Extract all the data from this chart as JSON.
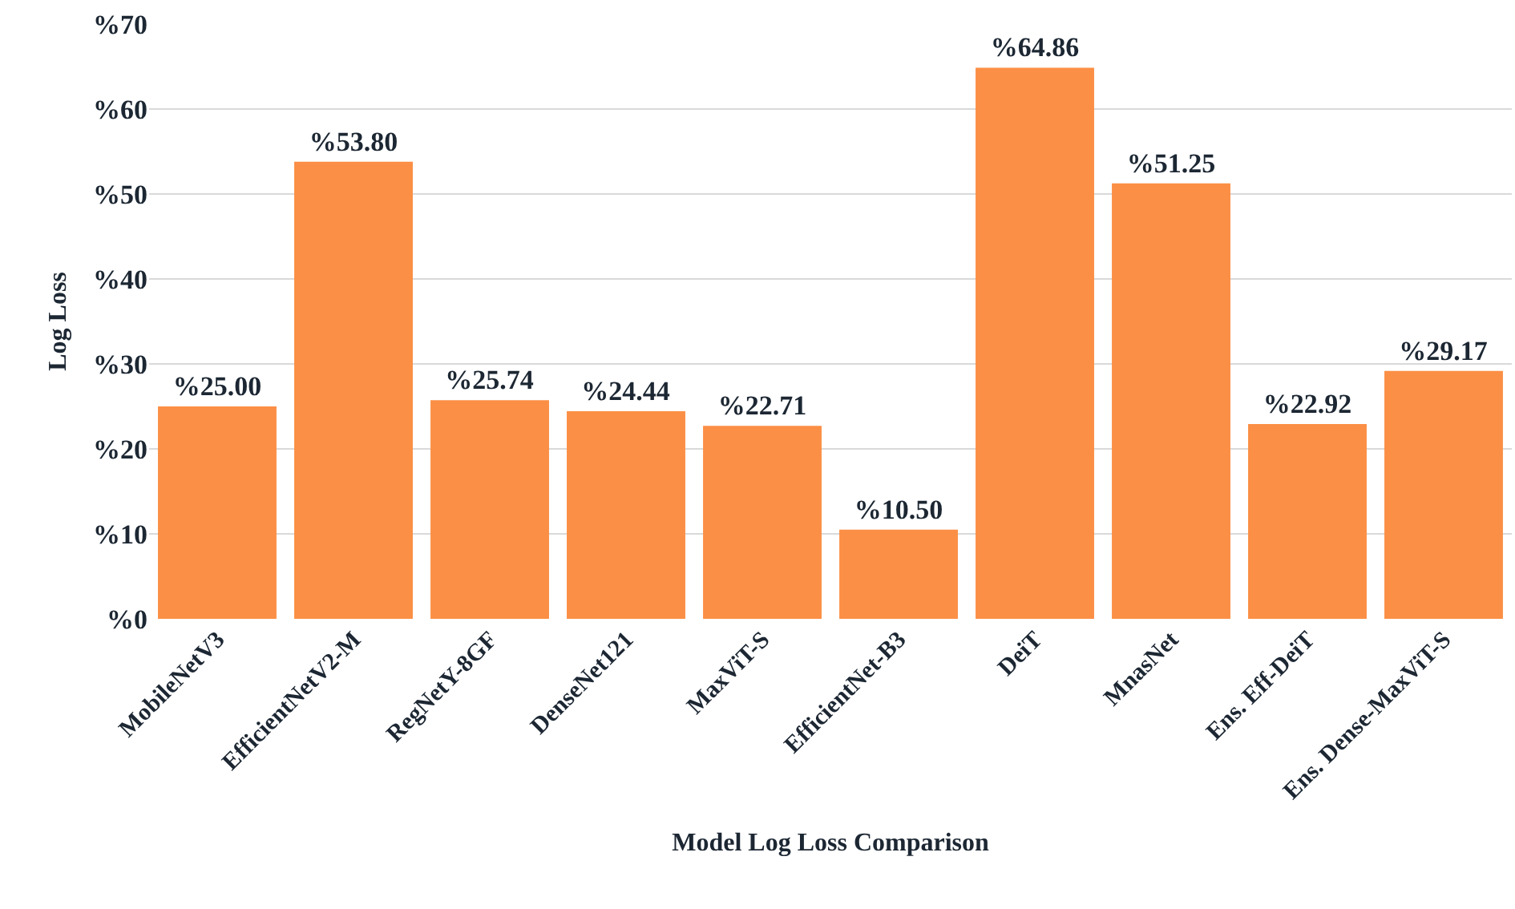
{
  "chart_data": {
    "type": "bar",
    "xlabel": "Model Log Loss Comparison",
    "ylabel": "Log Loss",
    "categories": [
      "MobileNetV3",
      "EfficientNetV2-M",
      "RegNetY-8GF",
      "DenseNet121",
      "MaxViT-S",
      "EfficientNet-B3",
      "DeiT",
      "MnasNet",
      "Ens. Eff-DeiT",
      "Ens. Dense-MaxViT-S"
    ],
    "values": [
      25.0,
      53.8,
      25.74,
      24.44,
      22.71,
      10.5,
      64.86,
      51.25,
      22.92,
      29.17
    ],
    "value_labels": [
      "%25.00",
      "%53.80",
      "%25.74",
      "%24.44",
      "%22.71",
      "%10.50",
      "%64.86",
      "%51.25",
      "%22.92",
      "%29.17"
    ],
    "color": "#fb8f45",
    "ylim": [
      0,
      70
    ],
    "yticks": [
      {
        "value": 0,
        "label": "%0"
      },
      {
        "value": 10,
        "label": "%10"
      },
      {
        "value": 20,
        "label": "%20"
      },
      {
        "value": 30,
        "label": "%30"
      },
      {
        "value": 40,
        "label": "%40"
      },
      {
        "value": 50,
        "label": "%50"
      },
      {
        "value": 60,
        "label": "%60"
      },
      {
        "value": 70,
        "label": "%70"
      }
    ],
    "grid": "y"
  }
}
